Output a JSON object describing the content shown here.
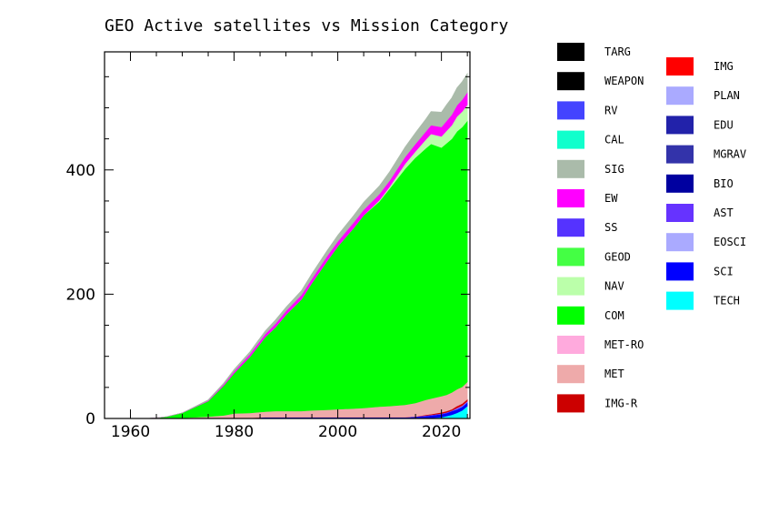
{
  "chart_data": {
    "type": "area",
    "stacked": true,
    "title": "GEO Active satellites vs Mission Category",
    "xlabel": "",
    "ylabel": "",
    "xlim": [
      1955,
      2025.5
    ],
    "ylim": [
      0,
      590
    ],
    "x_ticks": [
      1960,
      1980,
      2000,
      2020
    ],
    "y_ticks": [
      0,
      200,
      400
    ],
    "grid": false,
    "legend_position": "right",
    "x": [
      1963,
      1965,
      1967,
      1970,
      1975,
      1978,
      1980,
      1983,
      1986,
      1988,
      1990,
      1993,
      1995,
      1998,
      2000,
      2003,
      2005,
      2008,
      2010,
      2013,
      2015,
      2017,
      2018,
      2020,
      2021,
      2022,
      2023,
      2024,
      2025
    ],
    "series": [
      {
        "name": "TECH",
        "color": "#00ffff",
        "values": [
          0,
          0,
          0,
          0,
          0,
          0,
          0,
          0,
          0,
          0,
          0,
          0,
          0,
          0,
          0,
          0,
          0,
          0,
          0,
          0,
          0,
          0,
          1,
          2,
          4,
          6,
          9,
          13,
          20
        ]
      },
      {
        "name": "SCI",
        "color": "#0000ff",
        "values": [
          0,
          0,
          0,
          0,
          0,
          0,
          1,
          1,
          2,
          2,
          2,
          2,
          2,
          2,
          2,
          2,
          2,
          2,
          2,
          2,
          3,
          4,
          4,
          5,
          5,
          6,
          6,
          6,
          6
        ]
      },
      {
        "name": "EOSCI",
        "color": "#aaaaff",
        "values": [
          0,
          0,
          0,
          0,
          0,
          0,
          0,
          0,
          0,
          0,
          0,
          0,
          0,
          0,
          0,
          0,
          0,
          0,
          0,
          0,
          0,
          0,
          0,
          0,
          0,
          0,
          1,
          1,
          1
        ]
      },
      {
        "name": "AST",
        "color": "#6633ff",
        "values": [
          0,
          0,
          0,
          0,
          0,
          0,
          0,
          0,
          0,
          0,
          0,
          0,
          0,
          0,
          0,
          0,
          0,
          0,
          0,
          0,
          0,
          1,
          1,
          1,
          1,
          1,
          1,
          1,
          1
        ]
      },
      {
        "name": "BIO",
        "color": "#0000a0",
        "values": [
          0,
          0,
          0,
          0,
          0,
          0,
          0,
          0,
          0,
          0,
          0,
          0,
          0,
          0,
          0,
          0,
          0,
          0,
          0,
          0,
          0,
          0,
          0,
          0,
          0,
          0,
          0,
          0,
          0
        ]
      },
      {
        "name": "MGRAV",
        "color": "#3333aa",
        "values": [
          0,
          0,
          0,
          0,
          0,
          0,
          0,
          0,
          0,
          0,
          0,
          0,
          0,
          0,
          0,
          0,
          0,
          0,
          0,
          0,
          0,
          0,
          0,
          0,
          0,
          0,
          0,
          0,
          0
        ]
      },
      {
        "name": "EDU",
        "color": "#2222aa",
        "values": [
          0,
          0,
          0,
          0,
          0,
          0,
          0,
          0,
          0,
          0,
          0,
          0,
          0,
          0,
          0,
          0,
          0,
          0,
          0,
          0,
          0,
          0,
          0,
          0,
          0,
          0,
          0,
          0,
          0
        ]
      },
      {
        "name": "PLAN",
        "color": "#aaaaff",
        "values": [
          0,
          0,
          0,
          0,
          0,
          0,
          0,
          0,
          0,
          0,
          0,
          0,
          0,
          0,
          0,
          0,
          0,
          0,
          0,
          0,
          0,
          0,
          0,
          0,
          0,
          0,
          0,
          0,
          0
        ]
      },
      {
        "name": "IMG",
        "color": "#ff0000",
        "values": [
          0,
          0,
          0,
          0,
          0,
          0,
          0,
          0,
          0,
          0,
          0,
          0,
          0,
          0,
          0,
          0,
          0,
          0,
          0,
          0,
          0,
          0,
          0,
          0,
          0,
          0,
          1,
          1,
          1
        ]
      },
      {
        "name": "IMG-R",
        "color": "#cc0000",
        "values": [
          0,
          0,
          0,
          0,
          0,
          0,
          0,
          0,
          0,
          0,
          0,
          0,
          0,
          0,
          0,
          0,
          0,
          0,
          0,
          0,
          0,
          1,
          1,
          2,
          2,
          2,
          2,
          2,
          2
        ]
      },
      {
        "name": "MET",
        "color": "#eeaaaa",
        "values": [
          0,
          0,
          0,
          1,
          3,
          5,
          7,
          8,
          9,
          10,
          10,
          10,
          11,
          12,
          13,
          14,
          15,
          17,
          18,
          20,
          22,
          24,
          25,
          26,
          26,
          27,
          27,
          27,
          28
        ]
      },
      {
        "name": "MET-RO",
        "color": "#ffaadd",
        "values": [
          0,
          0,
          0,
          0,
          0,
          0,
          0,
          0,
          0,
          0,
          0,
          0,
          0,
          0,
          0,
          0,
          0,
          0,
          0,
          0,
          0,
          0,
          0,
          0,
          0,
          0,
          0,
          0,
          0
        ]
      },
      {
        "name": "COM",
        "color": "#00ff00",
        "values": [
          0,
          1,
          3,
          8,
          25,
          48,
          65,
          90,
          120,
          135,
          155,
          180,
          205,
          240,
          262,
          290,
          310,
          330,
          350,
          380,
          395,
          405,
          410,
          400,
          405,
          408,
          415,
          418,
          420
        ]
      },
      {
        "name": "NAV",
        "color": "#bbffaa",
        "values": [
          0,
          0,
          0,
          0,
          0,
          0,
          0,
          0,
          0,
          0,
          0,
          0,
          0,
          0,
          0,
          0,
          0,
          2,
          3,
          8,
          10,
          14,
          16,
          18,
          20,
          22,
          24,
          25,
          26
        ]
      },
      {
        "name": "GEOD",
        "color": "#44ff44",
        "values": [
          0,
          0,
          0,
          0,
          0,
          0,
          0,
          0,
          0,
          0,
          0,
          0,
          0,
          0,
          0,
          0,
          0,
          0,
          0,
          0,
          0,
          0,
          0,
          0,
          0,
          0,
          0,
          0,
          0
        ]
      },
      {
        "name": "SS",
        "color": "#5533ff",
        "values": [
          0,
          0,
          0,
          0,
          0,
          0,
          0,
          0,
          0,
          0,
          0,
          0,
          0,
          0,
          0,
          0,
          0,
          0,
          0,
          0,
          0,
          0,
          0,
          0,
          0,
          0,
          0,
          0,
          0
        ]
      },
      {
        "name": "EW",
        "color": "#ff00ff",
        "values": [
          0,
          0,
          0,
          0,
          1,
          2,
          3,
          4,
          5,
          6,
          6,
          7,
          7,
          8,
          8,
          9,
          9,
          10,
          10,
          11,
          12,
          13,
          14,
          15,
          16,
          17,
          18,
          19,
          20
        ]
      },
      {
        "name": "SIG",
        "color": "#aabbaa",
        "values": [
          0,
          0,
          0,
          0,
          1,
          2,
          3,
          4,
          5,
          6,
          6,
          7,
          8,
          9,
          10,
          11,
          12,
          13,
          14,
          16,
          18,
          20,
          22,
          24,
          26,
          27,
          28,
          29,
          30
        ]
      },
      {
        "name": "CAL",
        "color": "#11ffcc",
        "values": [
          0,
          0,
          0,
          0,
          0,
          0,
          0,
          0,
          0,
          0,
          0,
          0,
          0,
          0,
          0,
          0,
          0,
          0,
          0,
          0,
          0,
          0,
          0,
          0,
          0,
          0,
          0,
          0,
          0
        ]
      },
      {
        "name": "RV",
        "color": "#4444ff",
        "values": [
          0,
          0,
          0,
          0,
          0,
          0,
          0,
          0,
          0,
          0,
          0,
          0,
          0,
          0,
          0,
          0,
          0,
          0,
          0,
          0,
          0,
          0,
          0,
          0,
          0,
          0,
          0,
          0,
          0
        ]
      },
      {
        "name": "WEAPON",
        "color": "#000000",
        "values": [
          0,
          0,
          0,
          0,
          0,
          0,
          0,
          0,
          0,
          0,
          0,
          0,
          0,
          0,
          0,
          0,
          0,
          0,
          0,
          0,
          0,
          0,
          0,
          0,
          0,
          0,
          0,
          0,
          0
        ]
      },
      {
        "name": "TARG",
        "color": "#000000",
        "values": [
          0,
          0,
          0,
          0,
          0,
          0,
          0,
          0,
          0,
          0,
          0,
          0,
          0,
          0,
          0,
          0,
          0,
          0,
          0,
          0,
          0,
          0,
          0,
          0,
          0,
          0,
          0,
          0,
          0
        ]
      }
    ],
    "legend_columns": [
      [
        "TARG",
        "WEAPON",
        "RV",
        "CAL",
        "SIG",
        "EW",
        "SS",
        "GEOD",
        "NAV",
        "COM",
        "MET-RO",
        "MET",
        "IMG-R"
      ],
      [
        "IMG",
        "PLAN",
        "EDU",
        "MGRAV",
        "BIO",
        "AST",
        "EOSCI",
        "SCI",
        "TECH"
      ]
    ]
  }
}
